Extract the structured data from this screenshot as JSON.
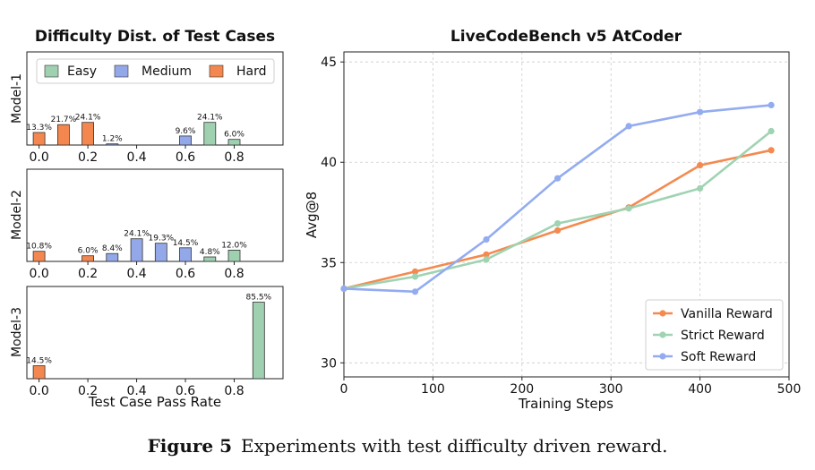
{
  "colors": {
    "easy": "#9fd0b0",
    "medium": "#93a8e8",
    "hard": "#f4874f",
    "vanilla": "#f48a4f",
    "strict": "#9fd3b2",
    "soft": "#93acf0"
  },
  "caption": {
    "label": "Figure 5",
    "text": "Experiments with test difficulty driven reward."
  },
  "chart_data": [
    {
      "type": "bar",
      "title": "Difficulty Dist. of Test Cases",
      "xlabel": "Test Case Pass Rate",
      "xticks": [
        "0.0",
        "0.2",
        "0.4",
        "0.6",
        "0.8"
      ],
      "xlim": [
        -0.05,
        1.0
      ],
      "legend": {
        "placement": "top-left",
        "entries": [
          {
            "key": "easy",
            "label": "Easy"
          },
          {
            "key": "medium",
            "label": "Medium"
          },
          {
            "key": "hard",
            "label": "Hard"
          }
        ]
      },
      "panels": [
        {
          "ylabel": "Model-1",
          "bars": [
            {
              "x": 0.0,
              "value": 13.3,
              "label": "13.3%",
              "difficulty": "hard"
            },
            {
              "x": 0.1,
              "value": 21.7,
              "label": "21.7%",
              "difficulty": "hard"
            },
            {
              "x": 0.2,
              "value": 24.1,
              "label": "24.1%",
              "difficulty": "hard"
            },
            {
              "x": 0.3,
              "value": 1.2,
              "label": "1.2%",
              "difficulty": "medium"
            },
            {
              "x": 0.6,
              "value": 9.6,
              "label": "9.6%",
              "difficulty": "medium"
            },
            {
              "x": 0.7,
              "value": 24.1,
              "label": "24.1%",
              "difficulty": "easy"
            },
            {
              "x": 0.8,
              "value": 6.0,
              "label": "6.0%",
              "difficulty": "easy"
            }
          ]
        },
        {
          "ylabel": "Model-2",
          "bars": [
            {
              "x": 0.0,
              "value": 10.8,
              "label": "10.8%",
              "difficulty": "hard"
            },
            {
              "x": 0.2,
              "value": 6.0,
              "label": "6.0%",
              "difficulty": "hard"
            },
            {
              "x": 0.3,
              "value": 8.4,
              "label": "8.4%",
              "difficulty": "medium"
            },
            {
              "x": 0.4,
              "value": 24.1,
              "label": "24.1%",
              "difficulty": "medium"
            },
            {
              "x": 0.5,
              "value": 19.3,
              "label": "19.3%",
              "difficulty": "medium"
            },
            {
              "x": 0.6,
              "value": 14.5,
              "label": "14.5%",
              "difficulty": "medium"
            },
            {
              "x": 0.7,
              "value": 4.8,
              "label": "4.8%",
              "difficulty": "easy"
            },
            {
              "x": 0.8,
              "value": 12.0,
              "label": "12.0%",
              "difficulty": "easy"
            }
          ]
        },
        {
          "ylabel": "Model-3",
          "bars": [
            {
              "x": 0.0,
              "value": 14.5,
              "label": "14.5%",
              "difficulty": "hard"
            },
            {
              "x": 0.9,
              "value": 85.5,
              "label": "85.5%",
              "difficulty": "easy"
            }
          ]
        }
      ]
    },
    {
      "type": "line",
      "title": "LiveCodeBench v5 AtCoder",
      "xlabel": "Training Steps",
      "ylabel": "Avg@8",
      "xlim": [
        0,
        500
      ],
      "ylim": [
        29.3,
        45.5
      ],
      "xticks": [
        0,
        100,
        200,
        300,
        400,
        500
      ],
      "yticks": [
        30,
        35,
        40,
        45
      ],
      "grid": true,
      "legend": {
        "placement": "bottom-right"
      },
      "x": [
        0,
        80,
        160,
        240,
        320,
        400,
        480
      ],
      "series": [
        {
          "key": "vanilla",
          "name": "Vanilla Reward",
          "values": [
            33.7,
            34.55,
            35.4,
            36.6,
            37.75,
            39.85,
            40.6
          ]
        },
        {
          "key": "strict",
          "name": "Strict Reward",
          "values": [
            33.7,
            34.3,
            35.15,
            36.95,
            37.7,
            38.7,
            41.55
          ]
        },
        {
          "key": "soft",
          "name": "Soft Reward",
          "values": [
            33.7,
            33.55,
            36.15,
            39.2,
            41.8,
            42.5,
            42.85
          ]
        }
      ]
    }
  ]
}
